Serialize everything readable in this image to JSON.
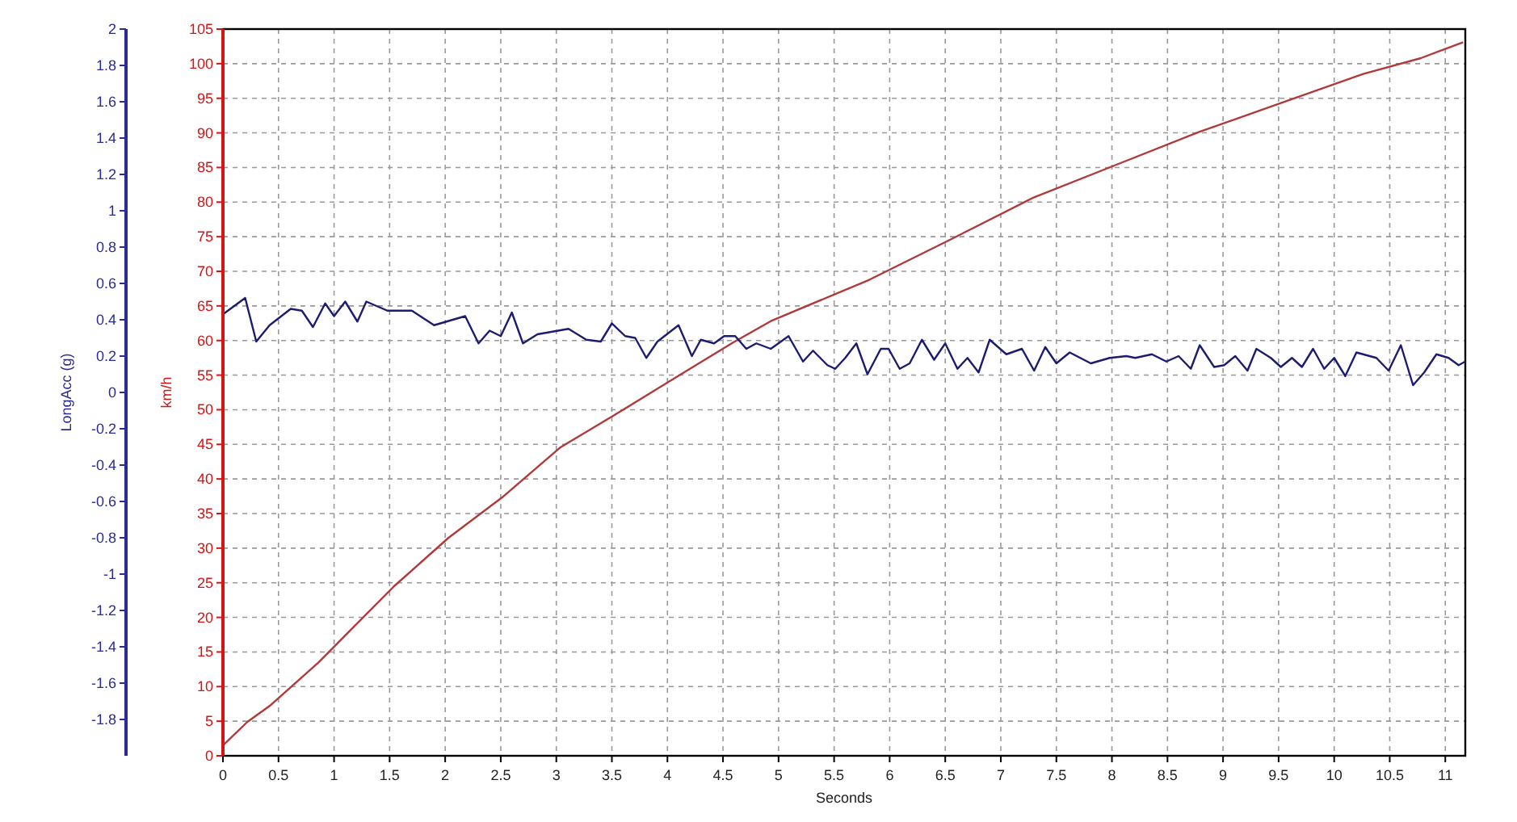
{
  "chart_data": {
    "type": "line",
    "xlabel": "Seconds",
    "ylabel": "km/h",
    "y2label": "LongAcc (g)",
    "xlim": [
      0,
      11.18
    ],
    "xticks": [
      0,
      0.5,
      1,
      1.5,
      2,
      2.5,
      3,
      3.5,
      4,
      4.5,
      5,
      5.5,
      6,
      6.5,
      7,
      7.5,
      8,
      8.5,
      9,
      9.5,
      10,
      10.5,
      11
    ],
    "ylim": [
      0,
      105
    ],
    "yticks": [
      0,
      5,
      10,
      15,
      20,
      25,
      30,
      35,
      40,
      45,
      50,
      55,
      60,
      65,
      70,
      75,
      80,
      85,
      90,
      95,
      100,
      105
    ],
    "y2lim": [
      -2,
      2
    ],
    "y2ticks": [
      -1.8,
      -1.6,
      -1.4,
      -1.2,
      -1,
      -0.8,
      -0.6,
      -0.4,
      -0.2,
      0,
      0.2,
      0.4,
      0.6,
      0.8,
      1,
      1.2,
      1.4,
      1.6,
      1.8,
      2
    ],
    "grid": true,
    "marker": "none",
    "line_style": "solid",
    "series": [
      {
        "color": "#b03a3a",
        "x": [
          0,
          0.22,
          0.42,
          0.86,
          1.54,
          2.03,
          2.51,
          3.04,
          3.52,
          4.11,
          4.59,
          4.93,
          5.82,
          6.56,
          7.3,
          8.04,
          8.78,
          9.52,
          10.26,
          10.78,
          11.16
        ],
        "values": [
          1.5,
          4.9,
          7.2,
          13.5,
          24.5,
          31.5,
          37.3,
          44.6,
          49.2,
          55,
          59.7,
          62.8,
          68.8,
          74.7,
          80.7,
          85.4,
          90.1,
          94.3,
          98.5,
          100.8,
          103.1
        ]
      },
      {
        "color": "#1c1c70",
        "axis": "y2",
        "x": [
          0,
          0.2,
          0.3,
          0.42,
          0.61,
          0.71,
          0.81,
          0.92,
          1.0,
          1.1,
          1.21,
          1.29,
          1.48,
          1.7,
          1.9,
          2.18,
          2.3,
          2.4,
          2.5,
          2.6,
          2.7,
          2.83,
          3.11,
          3.27,
          3.4,
          3.5,
          3.62,
          3.71,
          3.81,
          3.91,
          4.1,
          4.22,
          4.3,
          4.42,
          4.51,
          4.61,
          4.71,
          4.8,
          4.93,
          5.09,
          5.22,
          5.31,
          5.44,
          5.51,
          5.6,
          5.7,
          5.8,
          5.92,
          5.99,
          6.09,
          6.18,
          6.29,
          6.4,
          6.5,
          6.61,
          6.7,
          6.8,
          6.9,
          7.05,
          7.19,
          7.3,
          7.4,
          7.5,
          7.62,
          7.81,
          7.98,
          8.13,
          8.21,
          8.36,
          8.49,
          8.6,
          8.71,
          8.79,
          8.92,
          9.01,
          9.11,
          9.22,
          9.3,
          9.43,
          9.52,
          9.62,
          9.71,
          9.81,
          9.91,
          10.0,
          10.1,
          10.2,
          10.38,
          10.49,
          10.6,
          10.71,
          10.81,
          10.92,
          11.03,
          11.12,
          11.18
        ],
        "values": [
          0.43,
          0.52,
          0.28,
          0.37,
          0.46,
          0.45,
          0.36,
          0.49,
          0.42,
          0.5,
          0.39,
          0.5,
          0.45,
          0.45,
          0.37,
          0.42,
          0.27,
          0.34,
          0.31,
          0.44,
          0.27,
          0.32,
          0.35,
          0.29,
          0.28,
          0.38,
          0.31,
          0.3,
          0.19,
          0.28,
          0.37,
          0.2,
          0.29,
          0.27,
          0.31,
          0.31,
          0.24,
          0.27,
          0.24,
          0.31,
          0.17,
          0.23,
          0.15,
          0.13,
          0.19,
          0.27,
          0.1,
          0.24,
          0.24,
          0.13,
          0.16,
          0.29,
          0.18,
          0.27,
          0.13,
          0.19,
          0.11,
          0.29,
          0.21,
          0.24,
          0.12,
          0.25,
          0.16,
          0.22,
          0.16,
          0.19,
          0.2,
          0.19,
          0.21,
          0.17,
          0.2,
          0.13,
          0.26,
          0.14,
          0.15,
          0.2,
          0.12,
          0.24,
          0.19,
          0.14,
          0.19,
          0.14,
          0.24,
          0.13,
          0.19,
          0.09,
          0.22,
          0.19,
          0.12,
          0.26,
          0.04,
          0.11,
          0.21,
          0.19,
          0.15,
          0.17
        ]
      }
    ]
  }
}
